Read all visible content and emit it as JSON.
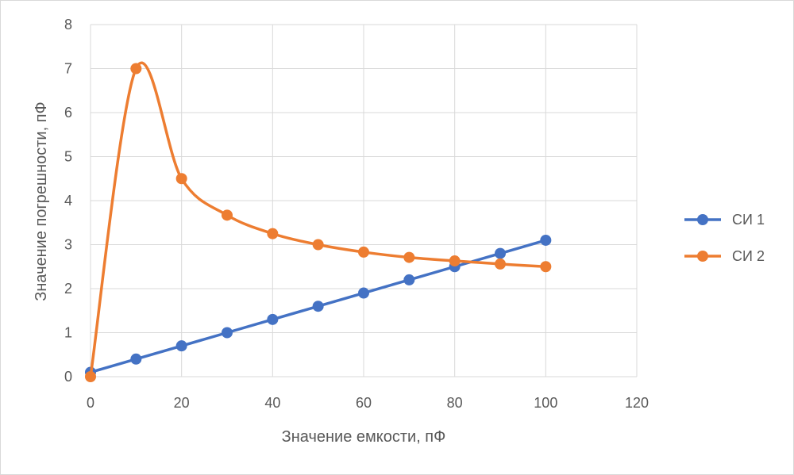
{
  "chart_data": {
    "type": "scatter",
    "title": "",
    "xlabel": "Значение емкости, пФ",
    "ylabel": "Значение погрешности, пФ",
    "xlim": [
      0,
      120
    ],
    "ylim": [
      0,
      8
    ],
    "xticks": [
      0,
      20,
      40,
      60,
      80,
      100,
      120
    ],
    "yticks": [
      0,
      1,
      2,
      3,
      4,
      5,
      6,
      7,
      8
    ],
    "grid": true,
    "legend_position": "right",
    "series": [
      {
        "name": "СИ 1",
        "color": "#4472c4",
        "smooth": false,
        "x": [
          0,
          10,
          20,
          30,
          40,
          50,
          60,
          70,
          80,
          90,
          100
        ],
        "y": [
          0.1,
          0.4,
          0.7,
          1.0,
          1.3,
          1.6,
          1.9,
          2.2,
          2.5,
          2.8,
          3.1
        ]
      },
      {
        "name": "СИ 2",
        "color": "#ed7d31",
        "smooth": true,
        "x": [
          0,
          10,
          20,
          30,
          40,
          50,
          60,
          70,
          80,
          90,
          100
        ],
        "y": [
          0,
          7.0,
          4.5,
          3.67,
          3.25,
          3.0,
          2.83,
          2.71,
          2.63,
          2.56,
          2.5
        ]
      }
    ]
  }
}
